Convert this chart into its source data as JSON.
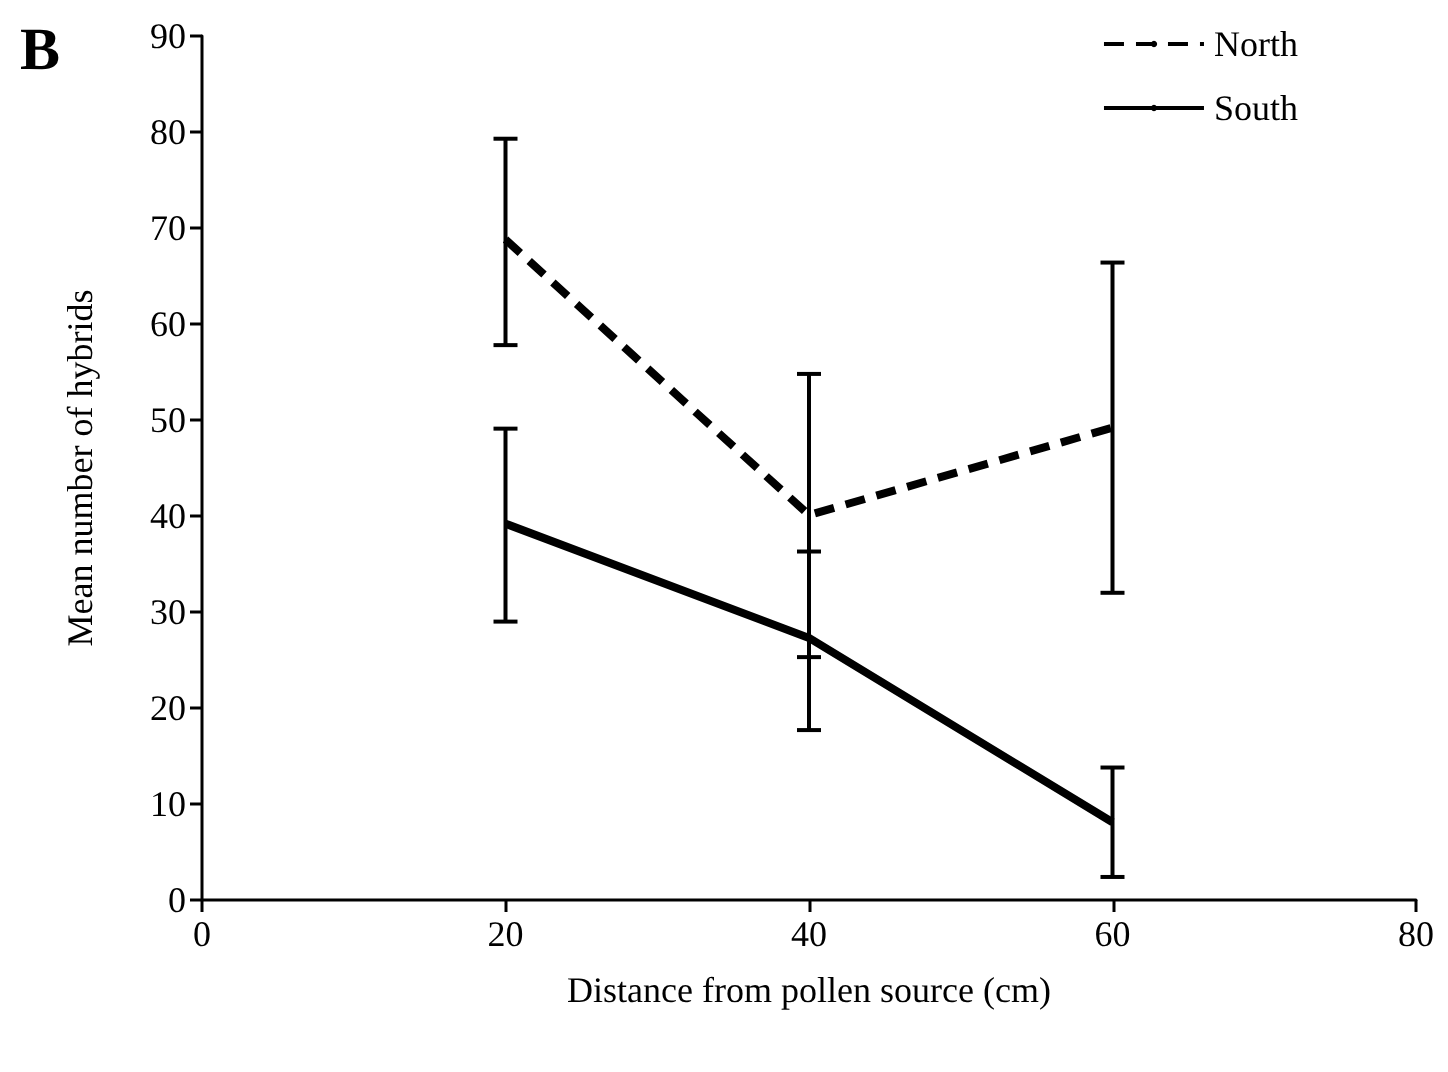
{
  "chart_data": {
    "type": "line",
    "xlabel": "Distance from pollen source (cm)",
    "ylabel": "Mean number of hybrids",
    "annotations": [
      "B"
    ],
    "x": [
      20,
      40,
      60
    ],
    "series": [
      {
        "name": "North",
        "color": "#000000",
        "line_style": "dashed",
        "values": [
          68.8,
          40.1,
          49.2
        ],
        "errors": [
          [
            57.8,
            79.3
          ],
          [
            25.3,
            54.8
          ],
          [
            32.0,
            66.4
          ]
        ]
      },
      {
        "name": "South",
        "color": "#000000",
        "line_style": "solid",
        "values": [
          39.2,
          27.3,
          8.1
        ],
        "errors": [
          [
            29.0,
            49.1
          ],
          [
            17.7,
            36.3
          ],
          [
            2.4,
            13.8
          ]
        ]
      }
    ],
    "xlim": [
      0,
      80
    ],
    "xticks": [
      0,
      20,
      40,
      60,
      80
    ],
    "ylim": [
      0,
      90
    ],
    "yticks": [
      0,
      10,
      20,
      30,
      40,
      50,
      60,
      70,
      80,
      90
    ],
    "legend": "top right",
    "marker": "none",
    "grid": false
  }
}
